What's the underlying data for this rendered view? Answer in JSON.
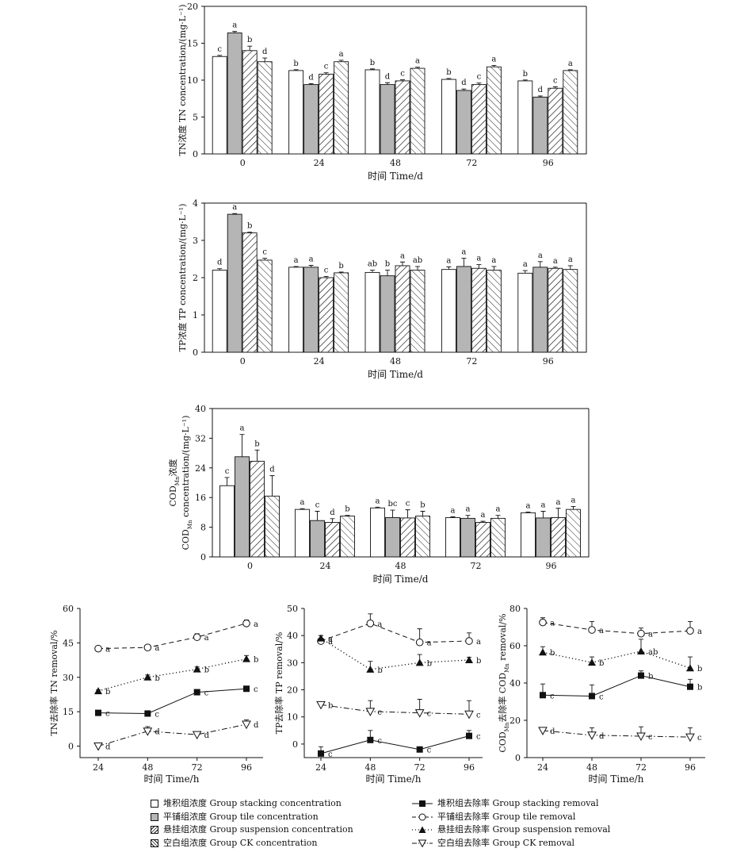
{
  "chart_data": [
    {
      "type": "bar",
      "id": "tn",
      "title": "",
      "ylabel": "TN浓度 TN concentration/(mg·L⁻¹)",
      "xlabel": "时间 Time/d",
      "categories": [
        "0",
        "24",
        "48",
        "72",
        "96"
      ],
      "ylim": [
        0,
        20
      ],
      "yticks": [
        "0",
        "5",
        "10",
        "15",
        "20"
      ],
      "series": [
        {
          "name": "堆积组浓度 Group stacking concentration",
          "values": [
            13.2,
            11.3,
            11.4,
            10.1,
            9.9
          ],
          "errors": [
            0.15,
            0.12,
            0.12,
            0.12,
            0.12
          ],
          "letters": [
            "c",
            "b",
            "b",
            "b",
            "b"
          ]
        },
        {
          "name": "平铺组浓度 Group tile concentration",
          "values": [
            16.4,
            9.4,
            9.4,
            8.6,
            7.7
          ],
          "errors": [
            0.2,
            0.12,
            0.25,
            0.2,
            0.15
          ],
          "letters": [
            "a",
            "d",
            "d",
            "d",
            "d"
          ]
        },
        {
          "name": "悬挂组浓度 Group suspension concentration",
          "values": [
            14.0,
            10.8,
            9.9,
            9.4,
            8.9
          ],
          "errors": [
            0.6,
            0.2,
            0.15,
            0.2,
            0.2
          ],
          "letters": [
            "b",
            "c",
            "c",
            "c",
            "c"
          ]
        },
        {
          "name": "空白组浓度 Group CK concentration",
          "values": [
            12.5,
            12.5,
            11.6,
            11.8,
            11.3
          ],
          "errors": [
            0.5,
            0.2,
            0.15,
            0.2,
            0.1
          ],
          "letters": [
            "d",
            "a",
            "a",
            "a",
            "a"
          ]
        }
      ]
    },
    {
      "type": "bar",
      "id": "tp",
      "title": "",
      "ylabel": "TP浓度 TP concentration/(mg·L⁻¹)",
      "xlabel": "时间 Time/d",
      "categories": [
        "0",
        "24",
        "48",
        "72",
        "96"
      ],
      "ylim": [
        0,
        4
      ],
      "yticks": [
        "0",
        "1",
        "2",
        "3",
        "4"
      ],
      "series": [
        {
          "name": "堆积组浓度 Group stacking concentration",
          "values": [
            2.2,
            2.28,
            2.14,
            2.22,
            2.12
          ],
          "errors": [
            0.04,
            0.02,
            0.06,
            0.07,
            0.07
          ],
          "letters": [
            "d",
            "a",
            "ab",
            "a",
            "a"
          ]
        },
        {
          "name": "平铺组浓度 Group tile concentration",
          "values": [
            3.7,
            2.28,
            2.05,
            2.3,
            2.28
          ],
          "errors": [
            0.02,
            0.05,
            0.15,
            0.22,
            0.15
          ],
          "letters": [
            "a",
            "a",
            "b",
            "a",
            "a"
          ]
        },
        {
          "name": "悬挂组浓度 Group suspension concentration",
          "values": [
            3.2,
            2.0,
            2.32,
            2.25,
            2.25
          ],
          "errors": [
            0.02,
            0.03,
            0.1,
            0.1,
            0.03
          ],
          "letters": [
            "b",
            "c",
            "a",
            "a",
            "a"
          ]
        },
        {
          "name": "空白组浓度 Group CK concentration",
          "values": [
            2.47,
            2.13,
            2.2,
            2.2,
            2.22
          ],
          "errors": [
            0.05,
            0.02,
            0.1,
            0.1,
            0.1
          ],
          "letters": [
            "c",
            "b",
            "ab",
            "a",
            "a"
          ]
        }
      ]
    },
    {
      "type": "bar",
      "id": "cod",
      "title": "",
      "ylabel_line1": "COD",
      "ylabel_line1_sub": "Mn",
      "ylabel_line1_rest": "浓度",
      "ylabel_line2": "COD",
      "ylabel_line2_sub": "Mn",
      "ylabel_line2_rest": " concentration/(mg·L⁻¹)",
      "xlabel": "时间 Time/d",
      "categories": [
        "0",
        "24",
        "48",
        "72",
        "96"
      ],
      "ylim": [
        0,
        40
      ],
      "yticks": [
        "0",
        "8",
        "16",
        "24",
        "32",
        "40"
      ],
      "series": [
        {
          "name": "堆积组浓度 Group stacking concentration",
          "values": [
            19.2,
            12.8,
            13.2,
            10.6,
            11.9
          ],
          "errors": [
            2.2,
            0.2,
            0.2,
            0.2,
            0.2
          ],
          "letters": [
            "c",
            "a",
            "a",
            "a",
            "a"
          ]
        },
        {
          "name": "平铺组浓度 Group tile concentration",
          "values": [
            27.0,
            9.8,
            10.6,
            10.4,
            10.5
          ],
          "errors": [
            6.0,
            2.5,
            2.0,
            0.8,
            1.8
          ],
          "letters": [
            "a",
            "c",
            "bc",
            "a",
            "a"
          ]
        },
        {
          "name": "悬挂组浓度 Group suspension concentration",
          "values": [
            25.8,
            9.3,
            10.5,
            9.3,
            10.6
          ],
          "errors": [
            3.0,
            1.0,
            2.2,
            0.3,
            2.5
          ],
          "letters": [
            "b",
            "d",
            "c",
            "a",
            "a"
          ]
        },
        {
          "name": "空白组浓度 Group CK concentration",
          "values": [
            16.4,
            11.0,
            11.0,
            10.4,
            12.8
          ],
          "errors": [
            5.5,
            0.2,
            1.3,
            0.8,
            0.8
          ],
          "letters": [
            "d",
            "b",
            "b",
            "a",
            "a"
          ]
        }
      ]
    },
    {
      "type": "line",
      "id": "tnr",
      "ylabel": "TN去除率 TN removal/%",
      "xlabel": "时间 Time/h",
      "x": [
        "24",
        "48",
        "72",
        "96"
      ],
      "ylim": [
        -5,
        60
      ],
      "yticks": [
        "0",
        "15",
        "30",
        "45",
        "60"
      ],
      "series": [
        {
          "name": "堆积组去除率 Group stacking removal",
          "values": [
            14.5,
            14.2,
            23.5,
            25
          ],
          "errors": [
            0,
            0,
            1,
            0.5
          ],
          "letters": [
            "c",
            "c",
            "c",
            "c"
          ]
        },
        {
          "name": "平铺组去除率 Group tile removal",
          "values": [
            42.5,
            43,
            47.5,
            53.5
          ],
          "errors": [
            0.5,
            1,
            1.5,
            1.5
          ],
          "letters": [
            "a",
            "a",
            "a",
            "a"
          ]
        },
        {
          "name": "悬挂组去除率 Group suspension removal",
          "values": [
            24,
            30,
            33.5,
            38
          ],
          "errors": [
            0.5,
            1,
            1,
            1.5
          ],
          "letters": [
            "b",
            "b",
            "b",
            "b"
          ]
        },
        {
          "name": "空白组去除率 Group CK removal",
          "values": [
            0,
            6.5,
            5,
            9.5
          ],
          "errors": [
            0.5,
            2,
            0.5,
            2
          ],
          "letters": [
            "d",
            "d",
            "d",
            "d"
          ]
        }
      ]
    },
    {
      "type": "line",
      "id": "tpr",
      "ylabel": "TP去除率 TP removal/%",
      "xlabel": "时间 Time/h",
      "x": [
        "24",
        "48",
        "72",
        "96"
      ],
      "ylim": [
        -5,
        50
      ],
      "yticks": [
        "0",
        "10",
        "20",
        "30",
        "40",
        "50"
      ],
      "series": [
        {
          "name": "堆积组去除率 Group stacking removal",
          "values": [
            -3.5,
            1.5,
            -2,
            3
          ],
          "errors": [
            2.5,
            3.5,
            0.5,
            2
          ],
          "letters": [
            "c",
            "c",
            "c",
            "c"
          ]
        },
        {
          "name": "平铺组去除率 Group tile removal",
          "values": [
            38,
            44.5,
            37.5,
            38
          ],
          "errors": [
            2,
            3.5,
            5,
            3
          ],
          "letters": [
            "a",
            "a",
            "a",
            "a"
          ]
        },
        {
          "name": "悬挂组去除率 Group suspension removal",
          "values": [
            39,
            27.5,
            30,
            31
          ],
          "errors": [
            1,
            3,
            3,
            1
          ],
          "letters": [
            "a",
            "b",
            "b",
            "b"
          ]
        },
        {
          "name": "空白组去除率 Group CK removal",
          "values": [
            14.5,
            12,
            11.5,
            11
          ],
          "errors": [
            1,
            4,
            5,
            5
          ],
          "letters": [
            "b",
            "c",
            "c",
            "c"
          ]
        }
      ]
    },
    {
      "type": "line",
      "id": "codr",
      "ylabel_main": "COD",
      "ylabel_sub": "Mn",
      "ylabel_mid": "去除率 COD",
      "ylabel_sub2": "Mn",
      "ylabel_rest": " removal/%",
      "xlabel": "时间 Time/h",
      "x": [
        "24",
        "48",
        "72",
        "96"
      ],
      "ylim": [
        0,
        80
      ],
      "yticks": [
        "0",
        "20",
        "40",
        "60",
        "80"
      ],
      "series": [
        {
          "name": "堆积组去除率 Group stacking removal",
          "values": [
            33.5,
            33,
            44,
            38
          ],
          "errors": [
            6,
            6,
            2.5,
            4
          ],
          "letters": [
            "c",
            "c",
            "b",
            "b"
          ]
        },
        {
          "name": "平铺组去除率 Group tile removal",
          "values": [
            72.5,
            68.5,
            66.5,
            68
          ],
          "errors": [
            2.5,
            4.5,
            3,
            5
          ],
          "letters": [
            "a",
            "a",
            "a",
            "a"
          ]
        },
        {
          "name": "悬挂组去除率 Group suspension removal",
          "values": [
            56.5,
            51,
            57,
            48
          ],
          "errors": [
            3,
            3,
            6.5,
            6
          ],
          "letters": [
            "b",
            "b",
            "ab",
            "b"
          ]
        },
        {
          "name": "空白组去除率 Group CK removal",
          "values": [
            14.5,
            12,
            11.5,
            11
          ],
          "errors": [
            0.5,
            4,
            5,
            5
          ],
          "letters": [
            "d",
            "d",
            "c",
            "c"
          ]
        }
      ]
    }
  ],
  "legend": {
    "stacking_conc": "堆积组浓度 Group stacking concentration",
    "tile_conc": "平铺组浓度 Group tile concentration",
    "suspension_conc": "悬挂组浓度 Group suspension concentration",
    "ck_conc": "空白组浓度 Group CK concentration",
    "stacking_rem": "堆积组去除率 Group stacking removal",
    "tile_rem": "平铺组去除率 Group tile removal",
    "suspension_rem": "悬挂组去除率 Group suspension removal",
    "ck_rem": "空白组去除率 Group CK removal"
  }
}
